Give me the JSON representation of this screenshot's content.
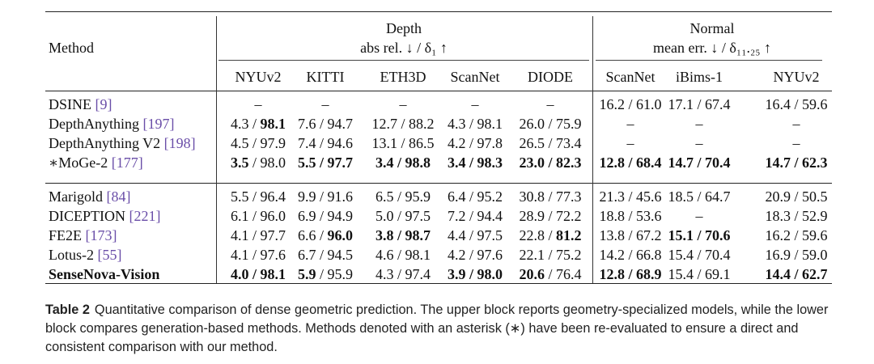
{
  "table": {
    "method_header": "Method",
    "depth": {
      "title": "Depth",
      "metric": "abs rel. ↓ / δ₁ ↑"
    },
    "normal": {
      "title": "Normal",
      "metric": "mean err. ↓ / δ₁₁.₂₅ ↑"
    },
    "columns": [
      "NYUv2",
      "KITTI",
      "ETH3D",
      "ScanNet",
      "DIODE",
      "ScanNet",
      "iBims-1",
      "NYUv2"
    ],
    "groups": [
      [
        {
          "name": "DSINE",
          "ref": "[9]",
          "bold_name": false,
          "cells": [
            [
              "–"
            ],
            [
              "–"
            ],
            [
              "–"
            ],
            [
              "–"
            ],
            [
              "–"
            ],
            [
              "16.2 / 61.0"
            ],
            [
              "17.1 / 67.4"
            ],
            [
              "16.4 / 59.6"
            ]
          ]
        },
        {
          "name": "DepthAnything",
          "ref": "[197]",
          "bold_name": false,
          "cells": [
            [
              "4.3 / ",
              "98.1b"
            ],
            [
              "7.6 / 94.7"
            ],
            [
              "12.7 / 88.2"
            ],
            [
              "4.3 / 98.1"
            ],
            [
              "26.0 / 75.9"
            ],
            [
              "–"
            ],
            [
              "–"
            ],
            [
              "–"
            ]
          ]
        },
        {
          "name": "DepthAnything V2",
          "ref": "[198]",
          "bold_name": false,
          "cells": [
            [
              "4.5 / 97.9"
            ],
            [
              "7.4 / 94.6"
            ],
            [
              "13.1 / 86.5"
            ],
            [
              "4.2 / 97.8"
            ],
            [
              "26.5 / 73.4"
            ],
            [
              "–"
            ],
            [
              "–"
            ],
            [
              "–"
            ]
          ]
        },
        {
          "name": "∗MoGe-2",
          "ref": "[177]",
          "bold_name": false,
          "cells": [
            [
              "3.5b",
              " / 98.0"
            ],
            [
              "5.5 / 97.7b"
            ],
            [
              "3.4 / 98.8b"
            ],
            [
              "3.4 / 98.3b"
            ],
            [
              "23.0 / 82.3b"
            ],
            [
              "12.8 / 68.4b"
            ],
            [
              "14.7 / 70.4b"
            ],
            [
              "14.7 / 62.3b"
            ]
          ]
        }
      ],
      [
        {
          "name": "Marigold",
          "ref": "[84]",
          "bold_name": false,
          "cells": [
            [
              "5.5 / 96.4"
            ],
            [
              "9.9 / 91.6"
            ],
            [
              "6.5 / 95.9"
            ],
            [
              "6.4 / 95.2"
            ],
            [
              "30.8 / 77.3"
            ],
            [
              "21.3 / 45.6"
            ],
            [
              "18.5 / 64.7"
            ],
            [
              "20.9 / 50.5"
            ]
          ]
        },
        {
          "name": "DICEPTION",
          "ref": "[221]",
          "bold_name": false,
          "cells": [
            [
              "6.1 / 96.0"
            ],
            [
              "6.9 / 94.9"
            ],
            [
              "5.0 / 97.5"
            ],
            [
              "7.2 / 94.4"
            ],
            [
              "28.9 / 72.2"
            ],
            [
              "18.8 / 53.6"
            ],
            [
              "–"
            ],
            [
              "18.3 / 52.9"
            ]
          ]
        },
        {
          "name": "FE2E",
          "ref": "[173]",
          "bold_name": false,
          "cells": [
            [
              "4.1 / 97.7"
            ],
            [
              "6.6 / ",
              "96.0b"
            ],
            [
              "3.8 / 98.7b"
            ],
            [
              "4.4 / 97.5"
            ],
            [
              "22.8 / ",
              "81.2b"
            ],
            [
              "13.8 / 67.2"
            ],
            [
              "15.1 / 70.6b"
            ],
            [
              "16.2 / 59.6"
            ]
          ]
        },
        {
          "name": "Lotus-2",
          "ref": "[55]",
          "bold_name": false,
          "cells": [
            [
              "4.1 / 97.6"
            ],
            [
              "6.7 / 94.5"
            ],
            [
              "4.6 / 98.1"
            ],
            [
              "4.2 / 97.6"
            ],
            [
              "22.1 / 75.2"
            ],
            [
              "14.2 / 66.8"
            ],
            [
              "15.4 / 70.4"
            ],
            [
              "16.9 / 59.0"
            ]
          ]
        },
        {
          "name": "SenseNova-Vision",
          "ref": "",
          "bold_name": true,
          "cells": [
            [
              "4.0 / 98.1b"
            ],
            [
              "5.9b",
              " / 95.9"
            ],
            [
              "4.3 / 97.4"
            ],
            [
              "3.9 / 98.0b"
            ],
            [
              "20.6b",
              " / 76.4"
            ],
            [
              "12.8 / 68.9b"
            ],
            [
              "15.4 / 69.1"
            ],
            [
              "14.4 / 62.7b"
            ]
          ]
        }
      ]
    ]
  },
  "caption": {
    "label": "Table 2",
    "text": "Quantitative comparison of dense geometric prediction. The upper block reports geometry-specialized models, while the lower block compares generation-based methods. Methods denoted with an asterisk (∗) have been re-evaluated to ensure a direct and consistent comparison with our method."
  }
}
